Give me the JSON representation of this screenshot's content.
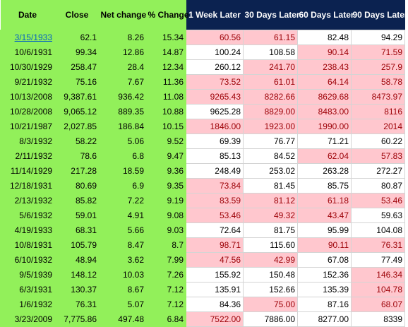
{
  "headers": [
    "Date",
    "Close",
    "Net change",
    "% Change",
    "1 Week Later",
    "30 Days Later",
    "60 Days Later",
    "90 Days Later"
  ],
  "colors": {
    "green": "#92f05a",
    "navy": "#0b2250",
    "down_bg": "#ffc7ce",
    "down_text": "#9c0006",
    "link": "#0563c1"
  },
  "rows": [
    {
      "date": "3/15/1933",
      "close": "62.1",
      "net": "8.26",
      "pct": "15.34",
      "w1": "60.56",
      "d30": "61.15",
      "d60": "82.48",
      "d90": "94.29",
      "flags": [
        "down",
        "down",
        "up",
        "up"
      ],
      "link": true
    },
    {
      "date": "10/6/1931",
      "close": "99.34",
      "net": "12.86",
      "pct": "14.87",
      "w1": "100.24",
      "d30": "108.58",
      "d60": "90.14",
      "d90": "71.59",
      "flags": [
        "up",
        "up",
        "down",
        "down"
      ]
    },
    {
      "date": "10/30/1929",
      "close": "258.47",
      "net": "28.4",
      "pct": "12.34",
      "w1": "260.12",
      "d30": "241.70",
      "d60": "238.43",
      "d90": "257.9",
      "flags": [
        "up",
        "down",
        "down",
        "down"
      ]
    },
    {
      "date": "9/21/1932",
      "close": "75.16",
      "net": "7.67",
      "pct": "11.36",
      "w1": "73.52",
      "d30": "61.01",
      "d60": "64.14",
      "d90": "58.78",
      "flags": [
        "down",
        "down",
        "down",
        "down"
      ]
    },
    {
      "date": "10/13/2008",
      "close": "9,387.61",
      "net": "936.42",
      "pct": "11.08",
      "w1": "9265.43",
      "d30": "8282.66",
      "d60": "8629.68",
      "d90": "8473.97",
      "flags": [
        "down",
        "down",
        "down",
        "down"
      ]
    },
    {
      "date": "10/28/2008",
      "close": "9,065.12",
      "net": "889.35",
      "pct": "10.88",
      "w1": "9625.28",
      "d30": "8829.00",
      "d60": "8483.00",
      "d90": "8116",
      "flags": [
        "up",
        "down",
        "down",
        "down"
      ]
    },
    {
      "date": "10/21/1987",
      "close": "2,027.85",
      "net": "186.84",
      "pct": "10.15",
      "w1": "1846.00",
      "d30": "1923.00",
      "d60": "1990.00",
      "d90": "2014",
      "flags": [
        "down",
        "down",
        "down",
        "down"
      ]
    },
    {
      "date": "8/3/1932",
      "close": "58.22",
      "net": "5.06",
      "pct": "9.52",
      "w1": "69.39",
      "d30": "76.77",
      "d60": "71.21",
      "d90": "60.22",
      "flags": [
        "up",
        "up",
        "up",
        "up"
      ]
    },
    {
      "date": "2/11/1932",
      "close": "78.6",
      "net": "6.8",
      "pct": "9.47",
      "w1": "85.13",
      "d30": "84.52",
      "d60": "62.04",
      "d90": "57.83",
      "flags": [
        "up",
        "up",
        "down",
        "down"
      ]
    },
    {
      "date": "11/14/1929",
      "close": "217.28",
      "net": "18.59",
      "pct": "9.36",
      "w1": "248.49",
      "d30": "253.02",
      "d60": "263.28",
      "d90": "272.27",
      "flags": [
        "up",
        "up",
        "up",
        "up"
      ]
    },
    {
      "date": "12/18/1931",
      "close": "80.69",
      "net": "6.9",
      "pct": "9.35",
      "w1": "73.84",
      "d30": "81.45",
      "d60": "85.75",
      "d90": "80.87",
      "flags": [
        "down",
        "up",
        "up",
        "up"
      ]
    },
    {
      "date": "2/13/1932",
      "close": "85.82",
      "net": "7.22",
      "pct": "9.19",
      "w1": "83.59",
      "d30": "81.12",
      "d60": "61.18",
      "d90": "53.46",
      "flags": [
        "down",
        "down",
        "down",
        "down"
      ]
    },
    {
      "date": "5/6/1932",
      "close": "59.01",
      "net": "4.91",
      "pct": "9.08",
      "w1": "53.46",
      "d30": "49.32",
      "d60": "43.47",
      "d90": "59.63",
      "flags": [
        "down",
        "down",
        "down",
        "up"
      ]
    },
    {
      "date": "4/19/1933",
      "close": "68.31",
      "net": "5.66",
      "pct": "9.03",
      "w1": "72.64",
      "d30": "81.75",
      "d60": "95.99",
      "d90": "104.08",
      "flags": [
        "up",
        "up",
        "up",
        "up"
      ]
    },
    {
      "date": "10/8/1931",
      "close": "105.79",
      "net": "8.47",
      "pct": "8.7",
      "w1": "98.71",
      "d30": "115.60",
      "d60": "90.11",
      "d90": "76.31",
      "flags": [
        "down",
        "up",
        "down",
        "down"
      ]
    },
    {
      "date": "6/10/1932",
      "close": "48.94",
      "net": "3.62",
      "pct": "7.99",
      "w1": "47.56",
      "d30": "42.99",
      "d60": "67.08",
      "d90": "77.49",
      "flags": [
        "down",
        "down",
        "up",
        "up"
      ]
    },
    {
      "date": "9/5/1939",
      "close": "148.12",
      "net": "10.03",
      "pct": "7.26",
      "w1": "155.92",
      "d30": "150.48",
      "d60": "152.36",
      "d90": "146.34",
      "flags": [
        "up",
        "up",
        "up",
        "down"
      ]
    },
    {
      "date": "6/3/1931",
      "close": "130.37",
      "net": "8.67",
      "pct": "7.12",
      "w1": "135.91",
      "d30": "152.66",
      "d60": "135.39",
      "d90": "104.78",
      "flags": [
        "up",
        "up",
        "up",
        "down"
      ]
    },
    {
      "date": "1/6/1932",
      "close": "76.31",
      "net": "5.07",
      "pct": "7.12",
      "w1": "84.36",
      "d30": "75.00",
      "d60": "87.16",
      "d90": "68.07",
      "flags": [
        "up",
        "down",
        "up",
        "down"
      ]
    },
    {
      "date": "3/23/2009",
      "close": "7,775.86",
      "net": "497.48",
      "pct": "6.84",
      "w1": "7522.00",
      "d30": "7886.00",
      "d60": "8277.00",
      "d90": "8339",
      "flags": [
        "down",
        "up",
        "up",
        "up"
      ]
    }
  ]
}
